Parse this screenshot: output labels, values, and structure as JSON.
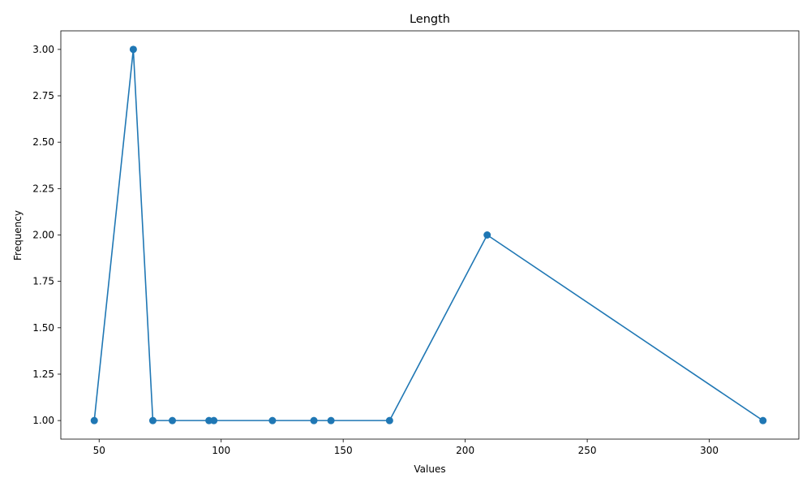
{
  "chart_data": {
    "type": "line",
    "title": "Length",
    "xlabel": "Values",
    "ylabel": "Frequency",
    "xlim": [
      34.3,
      336.7
    ],
    "ylim": [
      0.9,
      3.1
    ],
    "xticks": [
      50,
      100,
      150,
      200,
      250,
      300
    ],
    "xtick_labels": [
      "50",
      "100",
      "150",
      "200",
      "250",
      "300"
    ],
    "yticks": [
      1.0,
      1.25,
      1.5,
      1.75,
      2.0,
      2.25,
      2.5,
      2.75,
      3.0
    ],
    "ytick_labels": [
      "1.00",
      "1.25",
      "1.50",
      "1.75",
      "2.00",
      "2.25",
      "2.50",
      "2.75",
      "3.00"
    ],
    "grid": false,
    "legend": "none",
    "marker": "circle",
    "series": [
      {
        "color": "#1f77b4",
        "x": [
          48,
          64,
          72,
          80,
          95,
          97,
          121,
          138,
          145,
          169,
          209,
          322
        ],
        "y": [
          1,
          3,
          1,
          1,
          1,
          1,
          1,
          1,
          1,
          1,
          2,
          1
        ]
      }
    ]
  }
}
